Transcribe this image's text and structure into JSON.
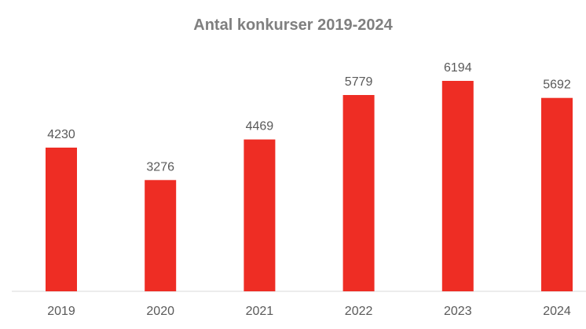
{
  "chart_data": {
    "type": "bar",
    "title": "Antal konkurser 2019-2024",
    "categories": [
      "2019",
      "2020",
      "2021",
      "2022",
      "2023",
      "2024"
    ],
    "values": [
      4230,
      3276,
      4469,
      5779,
      6194,
      5692
    ],
    "xlabel": "",
    "ylabel": "",
    "ylim": [
      0,
      6194
    ],
    "grid": false,
    "legend": "none",
    "data_labels": true,
    "colors": {
      "bar": "#ee2d24",
      "axis": "#d9d9d9",
      "title": "#7f7f7f",
      "text": "#595959"
    }
  }
}
